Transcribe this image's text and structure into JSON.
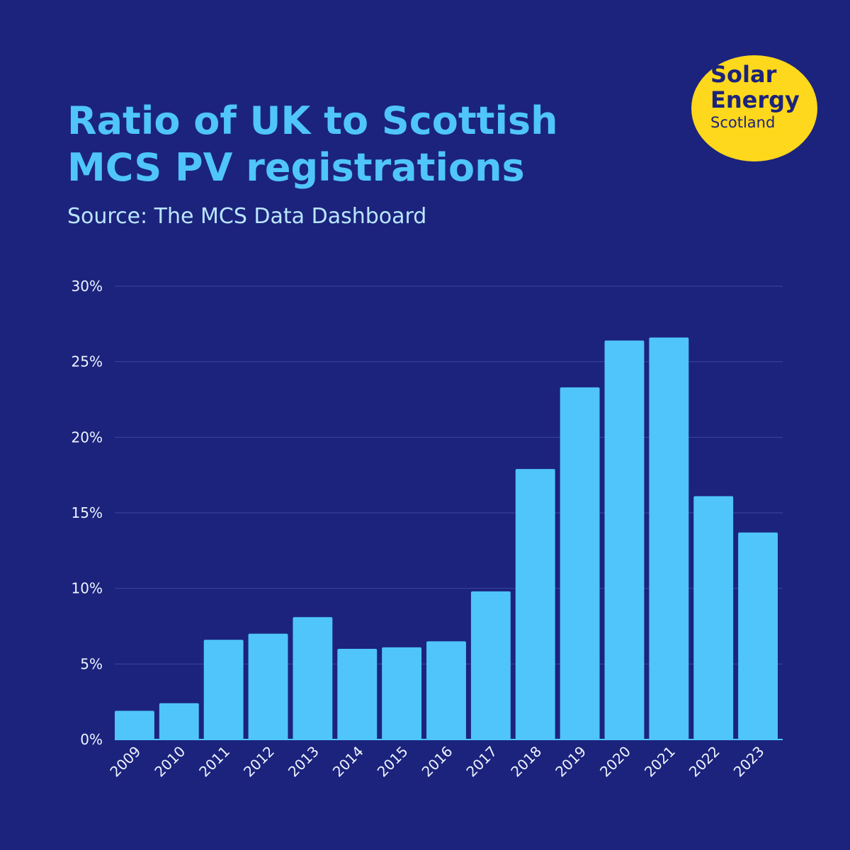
{
  "title": "Ratio of UK to Scottish\nMCS PV registrations",
  "subtitle": "Source: The MCS Data Dashboard",
  "logo": {
    "line1": "Solar",
    "line2": "Energy",
    "line3": "Scotland"
  },
  "colors": {
    "background": "#1c237c",
    "bar": "#4fc5fb",
    "title": "#4fc5fb",
    "logo": "#fed81c",
    "gridline": "#3a44a4"
  },
  "chart_data": {
    "type": "bar",
    "categories": [
      "2009",
      "2010",
      "2011",
      "2012",
      "2013",
      "2014",
      "2015",
      "2016",
      "2017",
      "2018",
      "2019",
      "2020",
      "2021",
      "2022",
      "2023"
    ],
    "values": [
      1.9,
      2.4,
      6.6,
      7.0,
      8.1,
      6.0,
      6.1,
      6.5,
      9.8,
      17.9,
      23.3,
      26.4,
      26.6,
      16.1,
      13.7
    ],
    "ylim": [
      0,
      30
    ],
    "yticks": [
      0,
      5,
      10,
      15,
      20,
      25,
      30
    ],
    "ytick_labels": [
      "0%",
      "5%",
      "10%",
      "15%",
      "20%",
      "25%",
      "30%"
    ],
    "grid": true,
    "xlabel": "",
    "ylabel": ""
  }
}
